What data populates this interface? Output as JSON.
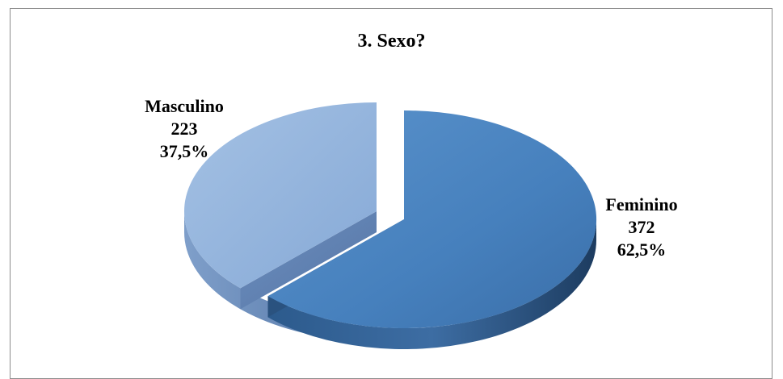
{
  "chart_data": {
    "type": "pie",
    "title": "3. Sexo?",
    "slices": [
      {
        "name": "Feminino",
        "value": 372,
        "percent": "62,5%",
        "color": "#4a82bd"
      },
      {
        "name": "Masculino",
        "value": 223,
        "percent": "37,5%",
        "color": "#8fb1db"
      }
    ],
    "style": "3d-exploded"
  }
}
